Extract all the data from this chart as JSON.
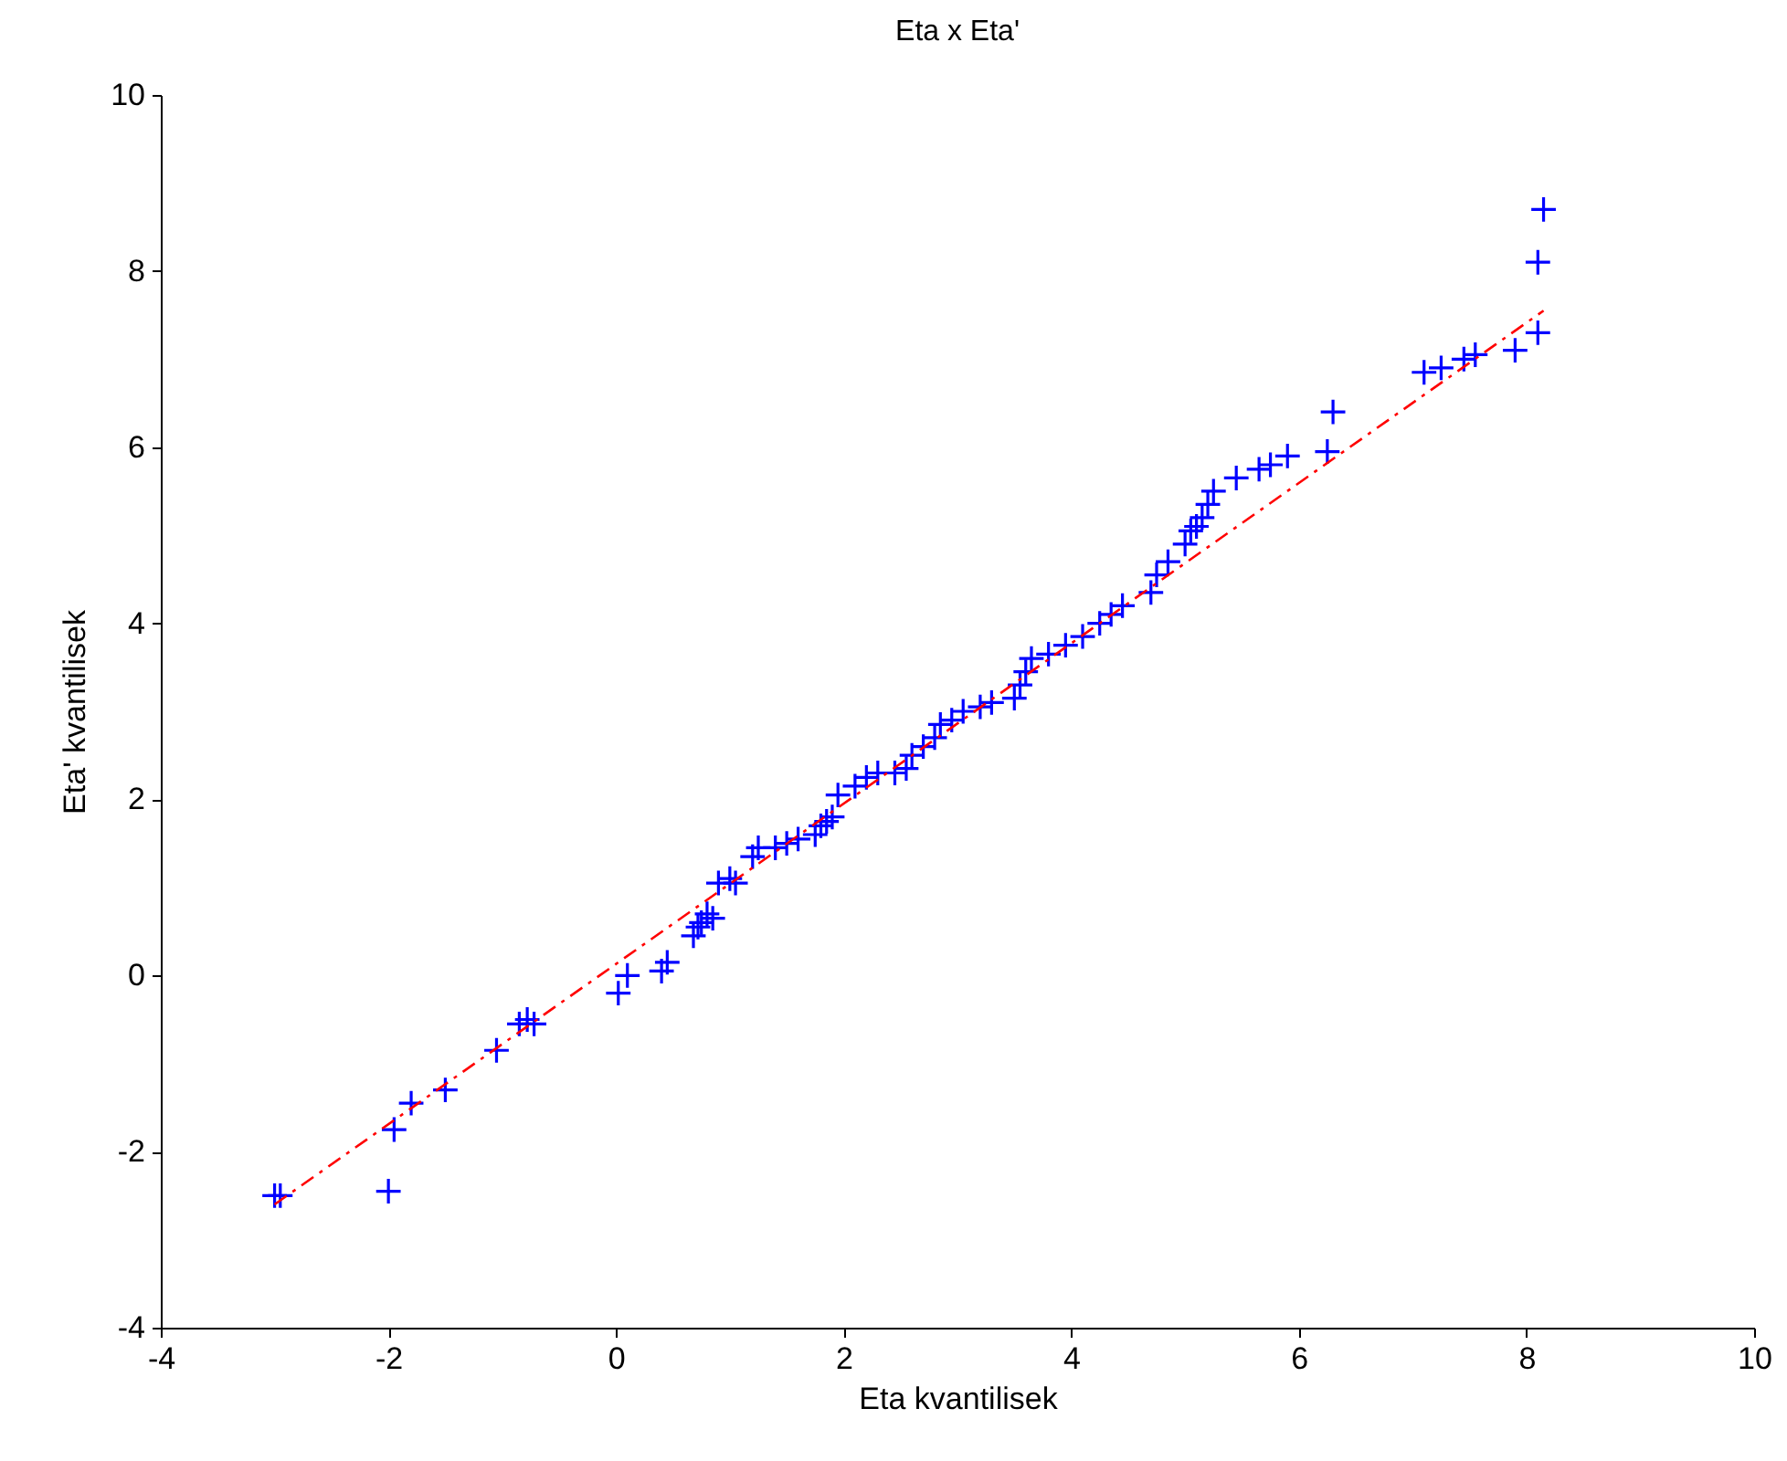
{
  "chart_data": {
    "type": "scatter",
    "title": "Eta x Eta'",
    "xlabel": "Eta kvantilisek",
    "ylabel": "Eta' kvantilisek",
    "xlim": [
      -4,
      10
    ],
    "ylim": [
      -4,
      10
    ],
    "xticks": [
      -4,
      -2,
      0,
      2,
      4,
      6,
      8,
      10
    ],
    "yticks": [
      -4,
      -2,
      0,
      2,
      4,
      6,
      8,
      10
    ],
    "grid": false,
    "series": [
      {
        "color": "#0000ff",
        "marker": "cross",
        "x": [
          -3.0,
          -2.95,
          -2.0,
          -1.95,
          -1.8,
          -1.5,
          -1.05,
          -0.85,
          -0.78,
          -0.72,
          0.02,
          0.1,
          0.4,
          0.45,
          0.68,
          0.72,
          0.75,
          0.8,
          0.85,
          0.9,
          1.0,
          1.05,
          1.2,
          1.25,
          1.4,
          1.5,
          1.6,
          1.75,
          1.8,
          1.85,
          1.9,
          1.95,
          2.1,
          2.2,
          2.3,
          2.45,
          2.55,
          2.6,
          2.7,
          2.8,
          2.85,
          2.95,
          3.05,
          3.2,
          3.3,
          3.5,
          3.55,
          3.6,
          3.65,
          3.8,
          3.95,
          4.1,
          4.25,
          4.35,
          4.45,
          4.7,
          4.75,
          4.85,
          5.0,
          5.05,
          5.1,
          5.15,
          5.2,
          5.25,
          5.45,
          5.65,
          5.75,
          5.9,
          6.25,
          6.3,
          7.1,
          7.25,
          7.45,
          7.55,
          7.9,
          8.1,
          8.1,
          8.15
        ],
        "values": [
          -2.5,
          -2.5,
          -2.45,
          -1.75,
          -1.45,
          -1.3,
          -0.85,
          -0.55,
          -0.5,
          -0.55,
          -0.2,
          0.0,
          0.05,
          0.15,
          0.45,
          0.55,
          0.6,
          0.7,
          0.65,
          1.05,
          1.1,
          1.05,
          1.35,
          1.45,
          1.45,
          1.5,
          1.55,
          1.6,
          1.7,
          1.75,
          1.8,
          2.05,
          2.15,
          2.25,
          2.3,
          2.3,
          2.35,
          2.5,
          2.6,
          2.7,
          2.85,
          2.9,
          3.0,
          3.05,
          3.1,
          3.15,
          3.3,
          3.45,
          3.6,
          3.65,
          3.75,
          3.85,
          4.0,
          4.1,
          4.2,
          4.35,
          4.55,
          4.7,
          4.9,
          5.05,
          5.1,
          5.2,
          5.35,
          5.5,
          5.65,
          5.75,
          5.8,
          5.9,
          5.95,
          6.4,
          6.85,
          6.9,
          7.0,
          7.05,
          7.1,
          7.3,
          8.1,
          8.7
        ]
      },
      {
        "type": "line",
        "color": "#ff0000",
        "line_style": "dashed",
        "marker": "none",
        "x": [
          -3.0,
          8.15
        ],
        "values": [
          -2.6,
          7.55
        ]
      }
    ]
  }
}
